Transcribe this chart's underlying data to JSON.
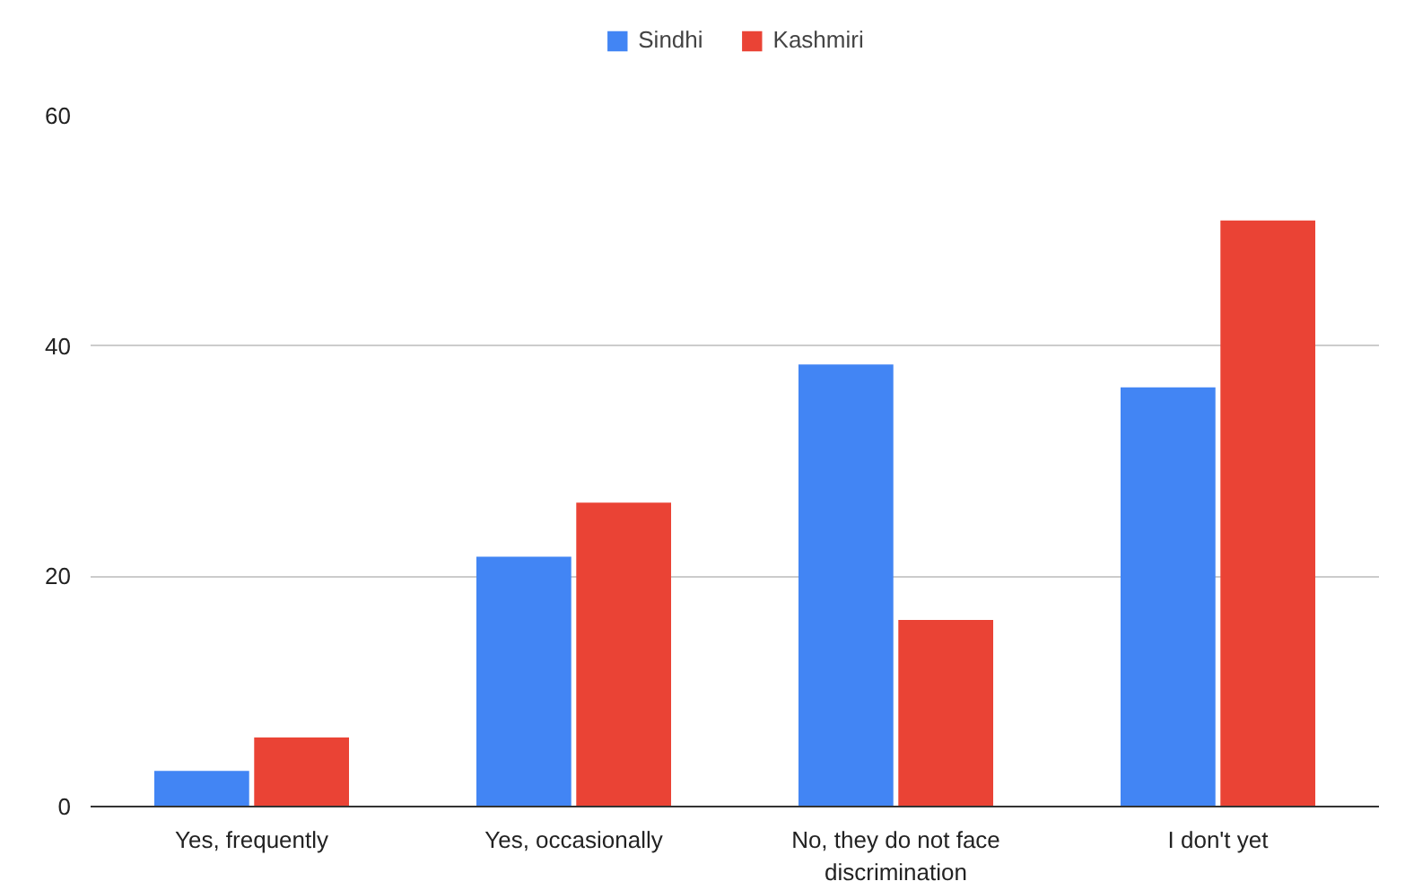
{
  "chart_data": {
    "type": "bar",
    "categories": [
      "Yes, frequently",
      "Yes, occasionally",
      "No, they do not face discrimination",
      "I don't yet"
    ],
    "series": [
      {
        "name": "Sindhi",
        "color": "#4285f4",
        "values": [
          3.1,
          21.7,
          38.4,
          36.4
        ]
      },
      {
        "name": "Kashmiri",
        "color": "#ea4335",
        "values": [
          6.0,
          26.4,
          16.2,
          50.9
        ]
      }
    ],
    "ylim": [
      0,
      60
    ],
    "yticks": [
      0,
      20,
      40,
      60
    ],
    "grid": "y",
    "legend": "top"
  }
}
